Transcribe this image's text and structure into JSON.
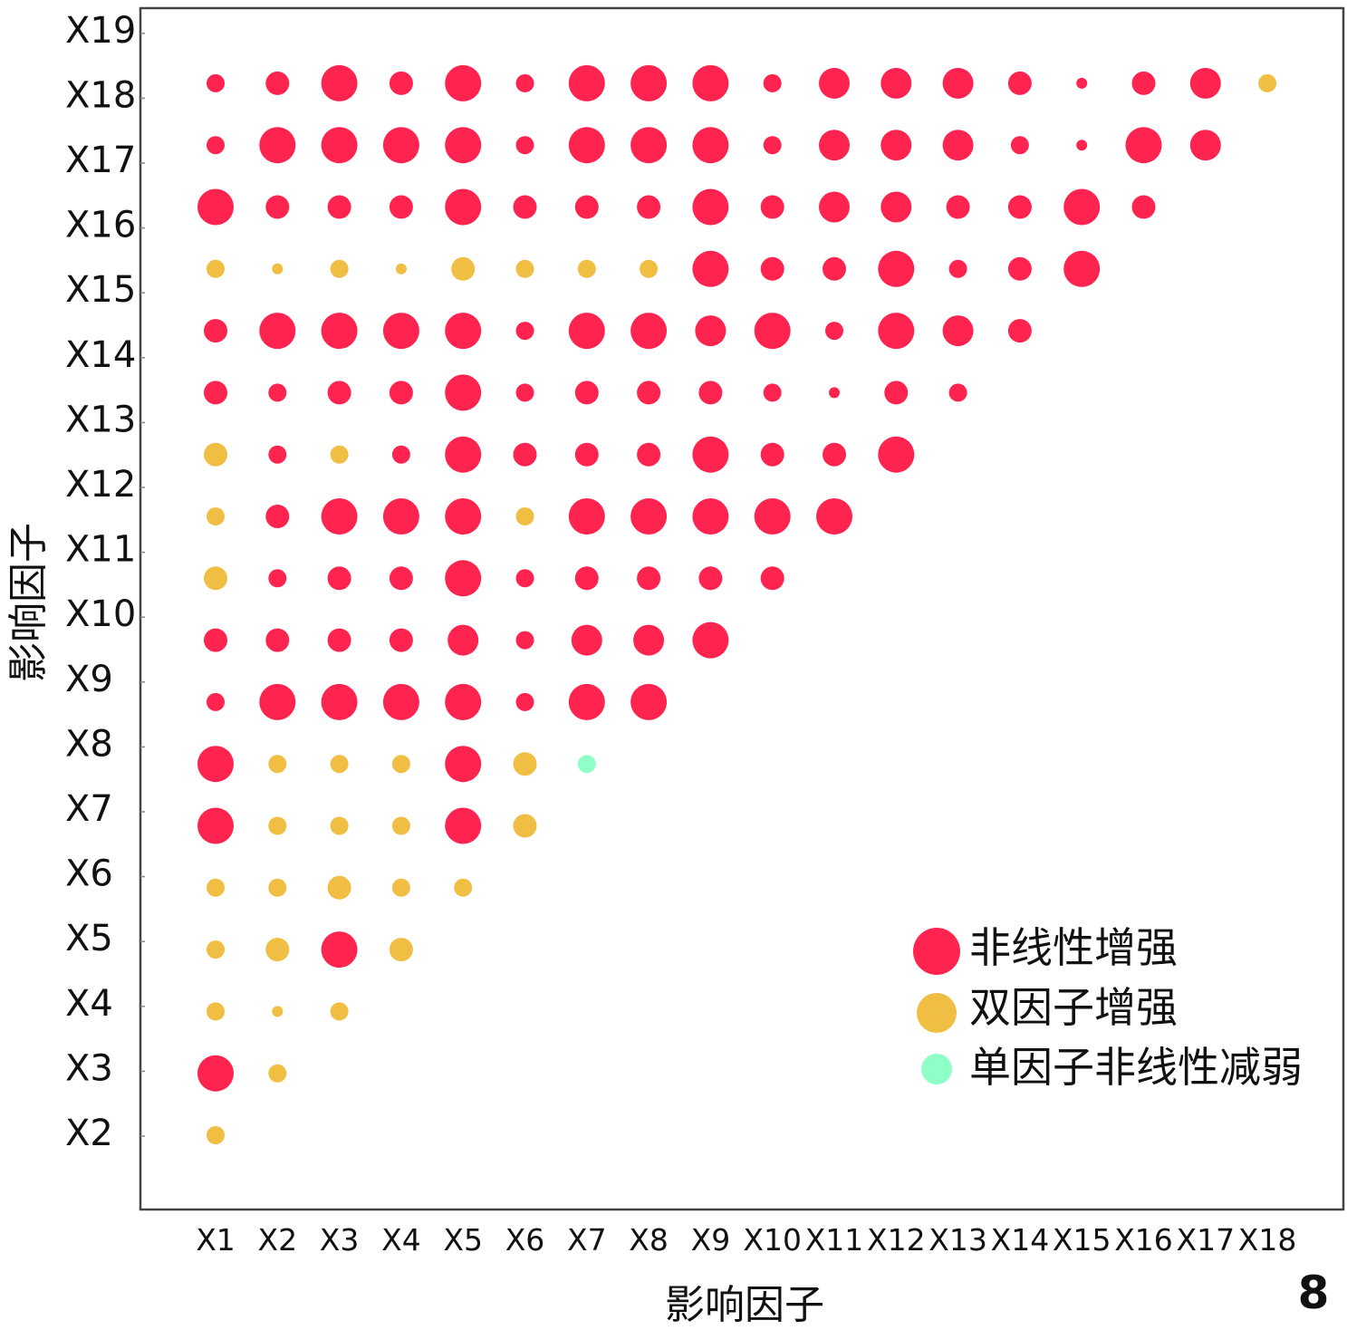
{
  "chart_data": {
    "type": "scatter",
    "subtype": "bubble-matrix",
    "xlabel": "影响因子",
    "ylabel": "影响因子",
    "panel_label": "8",
    "x_ticks": [
      "X1",
      "X2",
      "X3",
      "X4",
      "X5",
      "X6",
      "X7",
      "X8",
      "X9",
      "X10",
      "X11",
      "X12",
      "X13",
      "X14",
      "X15",
      "X16",
      "X17",
      "X18"
    ],
    "y_ticks": [
      "X2",
      "X3",
      "X4",
      "X5",
      "X6",
      "X7",
      "X8",
      "X9",
      "X10",
      "X11",
      "X12",
      "X13",
      "X14",
      "X15",
      "X16",
      "X17",
      "X18",
      "X19"
    ],
    "grid": false,
    "legend_placement": "bottom-right",
    "categories": {
      "nl": {
        "label": "非线性增强",
        "color": "#FF2450"
      },
      "bi": {
        "label": "双因子增强",
        "color": "#F0BE42"
      },
      "uni": {
        "label": "单因子非线性减弱",
        "color": "#8FFFC8"
      }
    },
    "size_scale_note": "relative size level 1-5",
    "rows": [
      {
        "y": "X2",
        "cells": [
          [
            "bi",
            2
          ]
        ]
      },
      {
        "y": "X3",
        "cells": [
          [
            "nl",
            5
          ],
          [
            "bi",
            2
          ]
        ]
      },
      {
        "y": "X4",
        "cells": [
          [
            "bi",
            2
          ],
          [
            "bi",
            1
          ],
          [
            "bi",
            2
          ]
        ]
      },
      {
        "y": "X5",
        "cells": [
          [
            "bi",
            2
          ],
          [
            "bi",
            3
          ],
          [
            "nl",
            5
          ],
          [
            "bi",
            3
          ]
        ]
      },
      {
        "y": "X6",
        "cells": [
          [
            "bi",
            2
          ],
          [
            "bi",
            2
          ],
          [
            "bi",
            3
          ],
          [
            "bi",
            2
          ],
          [
            "bi",
            2
          ]
        ]
      },
      {
        "y": "X7",
        "cells": [
          [
            "nl",
            5
          ],
          [
            "bi",
            2
          ],
          [
            "bi",
            2
          ],
          [
            "bi",
            2
          ],
          [
            "nl",
            5
          ],
          [
            "bi",
            3
          ]
        ]
      },
      {
        "y": "X8",
        "cells": [
          [
            "nl",
            5
          ],
          [
            "bi",
            2
          ],
          [
            "bi",
            2
          ],
          [
            "bi",
            2
          ],
          [
            "nl",
            5
          ],
          [
            "bi",
            3
          ],
          [
            "uni",
            2
          ]
        ]
      },
      {
        "y": "X9",
        "cells": [
          [
            "nl",
            2
          ],
          [
            "nl",
            5
          ],
          [
            "nl",
            5
          ],
          [
            "nl",
            5
          ],
          [
            "nl",
            5
          ],
          [
            "nl",
            2
          ],
          [
            "nl",
            5
          ],
          [
            "nl",
            5
          ]
        ]
      },
      {
        "y": "X10",
        "cells": [
          [
            "nl",
            3
          ],
          [
            "nl",
            3
          ],
          [
            "nl",
            3
          ],
          [
            "nl",
            3
          ],
          [
            "nl",
            4
          ],
          [
            "nl",
            2
          ],
          [
            "nl",
            4
          ],
          [
            "nl",
            4
          ],
          [
            "nl",
            5
          ]
        ]
      },
      {
        "y": "X11",
        "cells": [
          [
            "bi",
            3
          ],
          [
            "nl",
            2
          ],
          [
            "nl",
            3
          ],
          [
            "nl",
            3
          ],
          [
            "nl",
            5
          ],
          [
            "nl",
            2
          ],
          [
            "nl",
            3
          ],
          [
            "nl",
            3
          ],
          [
            "nl",
            3
          ],
          [
            "nl",
            3
          ]
        ]
      },
      {
        "y": "X12",
        "cells": [
          [
            "bi",
            2
          ],
          [
            "nl",
            3
          ],
          [
            "nl",
            5
          ],
          [
            "nl",
            5
          ],
          [
            "nl",
            5
          ],
          [
            "bi",
            2
          ],
          [
            "nl",
            5
          ],
          [
            "nl",
            5
          ],
          [
            "nl",
            5
          ],
          [
            "nl",
            5
          ],
          [
            "nl",
            5
          ]
        ]
      },
      {
        "y": "X13",
        "cells": [
          [
            "bi",
            3
          ],
          [
            "nl",
            2
          ],
          [
            "bi",
            2
          ],
          [
            "nl",
            2
          ],
          [
            "nl",
            5
          ],
          [
            "nl",
            3
          ],
          [
            "nl",
            3
          ],
          [
            "nl",
            3
          ],
          [
            "nl",
            5
          ],
          [
            "nl",
            3
          ],
          [
            "nl",
            3
          ],
          [
            "nl",
            5
          ]
        ]
      },
      {
        "y": "X14",
        "cells": [
          [
            "nl",
            3
          ],
          [
            "nl",
            2
          ],
          [
            "nl",
            3
          ],
          [
            "nl",
            3
          ],
          [
            "nl",
            5
          ],
          [
            "nl",
            2
          ],
          [
            "nl",
            3
          ],
          [
            "nl",
            3
          ],
          [
            "nl",
            3
          ],
          [
            "nl",
            2
          ],
          [
            "nl",
            1
          ],
          [
            "nl",
            3
          ],
          [
            "nl",
            2
          ]
        ]
      },
      {
        "y": "X15",
        "cells": [
          [
            "nl",
            3
          ],
          [
            "nl",
            5
          ],
          [
            "nl",
            5
          ],
          [
            "nl",
            5
          ],
          [
            "nl",
            5
          ],
          [
            "nl",
            2
          ],
          [
            "nl",
            5
          ],
          [
            "nl",
            5
          ],
          [
            "nl",
            4
          ],
          [
            "nl",
            5
          ],
          [
            "nl",
            2
          ],
          [
            "nl",
            5
          ],
          [
            "nl",
            4
          ],
          [
            "nl",
            3
          ]
        ]
      },
      {
        "y": "X16",
        "cells": [
          [
            "bi",
            2
          ],
          [
            "bi",
            1
          ],
          [
            "bi",
            2
          ],
          [
            "bi",
            1
          ],
          [
            "bi",
            3
          ],
          [
            "bi",
            2
          ],
          [
            "bi",
            2
          ],
          [
            "bi",
            2
          ],
          [
            "nl",
            5
          ],
          [
            "nl",
            3
          ],
          [
            "nl",
            3
          ],
          [
            "nl",
            5
          ],
          [
            "nl",
            2
          ],
          [
            "nl",
            3
          ],
          [
            "nl",
            5
          ]
        ]
      },
      {
        "y": "X17",
        "cells": [
          [
            "nl",
            5
          ],
          [
            "nl",
            3
          ],
          [
            "nl",
            3
          ],
          [
            "nl",
            3
          ],
          [
            "nl",
            5
          ],
          [
            "nl",
            3
          ],
          [
            "nl",
            3
          ],
          [
            "nl",
            3
          ],
          [
            "nl",
            5
          ],
          [
            "nl",
            3
          ],
          [
            "nl",
            4
          ],
          [
            "nl",
            4
          ],
          [
            "nl",
            3
          ],
          [
            "nl",
            3
          ],
          [
            "nl",
            5
          ],
          [
            "nl",
            3
          ]
        ]
      },
      {
        "y": "X18",
        "cells": [
          [
            "nl",
            2
          ],
          [
            "nl",
            5
          ],
          [
            "nl",
            5
          ],
          [
            "nl",
            5
          ],
          [
            "nl",
            5
          ],
          [
            "nl",
            2
          ],
          [
            "nl",
            5
          ],
          [
            "nl",
            5
          ],
          [
            "nl",
            5
          ],
          [
            "nl",
            2
          ],
          [
            "nl",
            4
          ],
          [
            "nl",
            4
          ],
          [
            "nl",
            4
          ],
          [
            "nl",
            2
          ],
          [
            "nl",
            1
          ],
          [
            "nl",
            5
          ],
          [
            "nl",
            4
          ]
        ]
      },
      {
        "y": "X19",
        "cells": [
          [
            "nl",
            2
          ],
          [
            "nl",
            3
          ],
          [
            "nl",
            5
          ],
          [
            "nl",
            3
          ],
          [
            "nl",
            5
          ],
          [
            "nl",
            2
          ],
          [
            "nl",
            5
          ],
          [
            "nl",
            5
          ],
          [
            "nl",
            5
          ],
          [
            "nl",
            2
          ],
          [
            "nl",
            4
          ],
          [
            "nl",
            4
          ],
          [
            "nl",
            4
          ],
          [
            "nl",
            3
          ],
          [
            "nl",
            1
          ],
          [
            "nl",
            3
          ],
          [
            "nl",
            4
          ],
          [
            "bi",
            2
          ]
        ]
      }
    ],
    "legend": [
      {
        "key": "nl",
        "label": "非线性增强"
      },
      {
        "key": "bi",
        "label": "双因子增强"
      },
      {
        "key": "uni",
        "label": "单因子非线性减弱"
      }
    ]
  }
}
